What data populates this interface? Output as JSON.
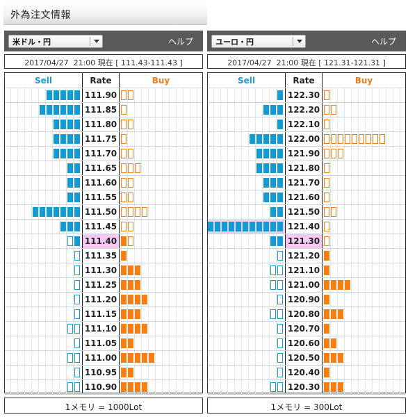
{
  "page": {
    "title": "外為注文情報"
  },
  "colors": {
    "sell": "#129ad6",
    "buy": "#f57f12",
    "current_rate_bg": "#f8c8f5",
    "header_bar": "#595959"
  },
  "panels": [
    {
      "pair_label": "米ドル・円",
      "help_label": "ヘルプ",
      "info": "2017/04/27  21:00 現在 [ 111.43-111.43 ]",
      "columns": {
        "sell": "Sell",
        "rate": "Rate",
        "buy": "Buy"
      },
      "current_rate": "111.40",
      "rows": [
        {
          "rate": "111.90",
          "sell_orders": 5,
          "sell_positions": 0,
          "buy_positions": 0,
          "buy_orders": 2
        },
        {
          "rate": "111.85",
          "sell_orders": 6,
          "sell_positions": 0,
          "buy_positions": 0,
          "buy_orders": 1
        },
        {
          "rate": "111.80",
          "sell_orders": 4,
          "sell_positions": 0,
          "buy_positions": 0,
          "buy_orders": 2
        },
        {
          "rate": "111.75",
          "sell_orders": 4,
          "sell_positions": 0,
          "buy_positions": 0,
          "buy_orders": 1
        },
        {
          "rate": "111.70",
          "sell_orders": 4,
          "sell_positions": 0,
          "buy_positions": 0,
          "buy_orders": 2
        },
        {
          "rate": "111.65",
          "sell_orders": 2,
          "sell_positions": 0,
          "buy_positions": 0,
          "buy_orders": 3
        },
        {
          "rate": "111.60",
          "sell_orders": 2,
          "sell_positions": 0,
          "buy_positions": 0,
          "buy_orders": 2
        },
        {
          "rate": "111.55",
          "sell_orders": 2,
          "sell_positions": 0,
          "buy_positions": 0,
          "buy_orders": 2
        },
        {
          "rate": "111.50",
          "sell_orders": 7,
          "sell_positions": 0,
          "buy_positions": 0,
          "buy_orders": 4
        },
        {
          "rate": "111.45",
          "sell_orders": 3,
          "sell_positions": 0,
          "buy_positions": 0,
          "buy_orders": 2
        },
        {
          "rate": "111.40",
          "sell_orders": 1,
          "sell_positions": 1,
          "buy_positions": 1,
          "buy_orders": 1
        },
        {
          "rate": "111.35",
          "sell_orders": 0,
          "sell_positions": 1,
          "buy_positions": 1,
          "buy_orders": 0
        },
        {
          "rate": "111.30",
          "sell_orders": 0,
          "sell_positions": 1,
          "buy_positions": 3,
          "buy_orders": 0
        },
        {
          "rate": "111.25",
          "sell_orders": 0,
          "sell_positions": 1,
          "buy_positions": 3,
          "buy_orders": 0
        },
        {
          "rate": "111.20",
          "sell_orders": 0,
          "sell_positions": 1,
          "buy_positions": 4,
          "buy_orders": 0
        },
        {
          "rate": "111.15",
          "sell_orders": 0,
          "sell_positions": 1,
          "buy_positions": 3,
          "buy_orders": 0
        },
        {
          "rate": "111.10",
          "sell_orders": 0,
          "sell_positions": 2,
          "buy_positions": 4,
          "buy_orders": 0
        },
        {
          "rate": "111.05",
          "sell_orders": 0,
          "sell_positions": 1,
          "buy_positions": 2,
          "buy_orders": 0
        },
        {
          "rate": "111.00",
          "sell_orders": 0,
          "sell_positions": 2,
          "buy_positions": 5,
          "buy_orders": 0
        },
        {
          "rate": "110.95",
          "sell_orders": 0,
          "sell_positions": 1,
          "buy_positions": 2,
          "buy_orders": 0
        },
        {
          "rate": "110.90",
          "sell_orders": 0,
          "sell_positions": 2,
          "buy_positions": 4,
          "buy_orders": 0
        }
      ],
      "footer": "1メモリ = 1000Lot"
    },
    {
      "pair_label": "ユーロ・円",
      "help_label": "ヘルプ",
      "info": "2017/04/27  21:00 現在 [ 121.31-121.31 ]",
      "columns": {
        "sell": "Sell",
        "rate": "Rate",
        "buy": "Buy"
      },
      "current_rate": "121.30",
      "rows": [
        {
          "rate": "122.30",
          "sell_orders": 1,
          "sell_positions": 0,
          "buy_positions": 0,
          "buy_orders": 1
        },
        {
          "rate": "122.20",
          "sell_orders": 3,
          "sell_positions": 0,
          "buy_positions": 0,
          "buy_orders": 2
        },
        {
          "rate": "122.10",
          "sell_orders": 1,
          "sell_positions": 0,
          "buy_positions": 0,
          "buy_orders": 1
        },
        {
          "rate": "122.00",
          "sell_orders": 5,
          "sell_positions": 0,
          "buy_positions": 0,
          "buy_orders": 9
        },
        {
          "rate": "121.90",
          "sell_orders": 4,
          "sell_positions": 0,
          "buy_positions": 0,
          "buy_orders": 3
        },
        {
          "rate": "121.80",
          "sell_orders": 4,
          "sell_positions": 0,
          "buy_positions": 0,
          "buy_orders": 1
        },
        {
          "rate": "121.70",
          "sell_orders": 3,
          "sell_positions": 0,
          "buy_positions": 0,
          "buy_orders": 1
        },
        {
          "rate": "121.60",
          "sell_orders": 3,
          "sell_positions": 0,
          "buy_positions": 0,
          "buy_orders": 1
        },
        {
          "rate": "121.50",
          "sell_orders": 2,
          "sell_positions": 0,
          "buy_positions": 0,
          "buy_orders": 2
        },
        {
          "rate": "121.40",
          "sell_orders": 11,
          "sell_positions": 0,
          "buy_positions": 0,
          "buy_orders": 1
        },
        {
          "rate": "121.30",
          "sell_orders": 2,
          "sell_positions": 0,
          "buy_positions": 0,
          "buy_orders": 1
        },
        {
          "rate": "121.20",
          "sell_orders": 0,
          "sell_positions": 1,
          "buy_positions": 1,
          "buy_orders": 0
        },
        {
          "rate": "121.10",
          "sell_orders": 0,
          "sell_positions": 2,
          "buy_positions": 1,
          "buy_orders": 0
        },
        {
          "rate": "121.00",
          "sell_orders": 0,
          "sell_positions": 2,
          "buy_positions": 4,
          "buy_orders": 0
        },
        {
          "rate": "120.90",
          "sell_orders": 0,
          "sell_positions": 1,
          "buy_positions": 1,
          "buy_orders": 0
        },
        {
          "rate": "120.80",
          "sell_orders": 0,
          "sell_positions": 2,
          "buy_positions": 3,
          "buy_orders": 0
        },
        {
          "rate": "120.70",
          "sell_orders": 0,
          "sell_positions": 1,
          "buy_positions": 1,
          "buy_orders": 0
        },
        {
          "rate": "120.60",
          "sell_orders": 0,
          "sell_positions": 1,
          "buy_positions": 2,
          "buy_orders": 0
        },
        {
          "rate": "120.50",
          "sell_orders": 0,
          "sell_positions": 1,
          "buy_positions": 3,
          "buy_orders": 0
        },
        {
          "rate": "120.40",
          "sell_orders": 0,
          "sell_positions": 1,
          "buy_positions": 1,
          "buy_orders": 0
        },
        {
          "rate": "120.30",
          "sell_orders": 0,
          "sell_positions": 2,
          "buy_positions": 3,
          "buy_orders": 0
        }
      ],
      "footer": "1メモリ = 300Lot"
    }
  ]
}
